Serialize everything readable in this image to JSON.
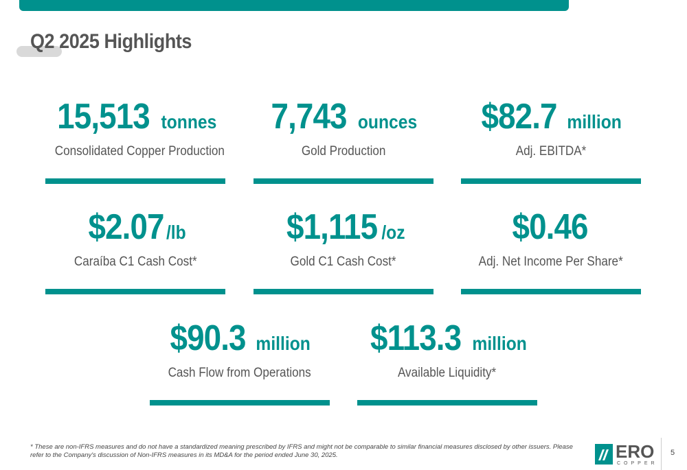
{
  "title": "Q2 2025 Highlights",
  "colors": {
    "accent": "#00918d",
    "text": "#555555",
    "pill": "#d9d9d9"
  },
  "metrics": [
    {
      "value": "15,513",
      "unit": " tonnes",
      "label": "Consolidated Copper Production"
    },
    {
      "value": "7,743",
      "unit": " ounces",
      "label": "Gold Production"
    },
    {
      "value": "$82.7",
      "unit": " million",
      "label": "Adj. EBITDA*"
    },
    {
      "value": "$2.07",
      "unit": "/lb",
      "label": "Caraíba C1 Cash Cost*"
    },
    {
      "value": "$1,115",
      "unit": "/oz",
      "label": "Gold C1 Cash Cost*"
    },
    {
      "value": "$0.46",
      "unit": "",
      "label": "Adj. Net Income Per Share*"
    },
    {
      "value": "$90.3",
      "unit": " million",
      "label": "Cash Flow from Operations"
    },
    {
      "value": "$113.3",
      "unit": " million",
      "label": "Available Liquidity*"
    }
  ],
  "footnote": "* These are non-IFRS measures and do not have a standardized meaning prescribed by IFRS and might not be comparable to similar financial measures disclosed by other issuers. Please refer to the Company's discussion of Non-IFRS measures in its MD&A for the period ended June 30, 2025.",
  "logo": {
    "name": "ERO",
    "sub": "COPPER",
    "icon": "ero-copper-logo-icon"
  },
  "page_number": "5"
}
